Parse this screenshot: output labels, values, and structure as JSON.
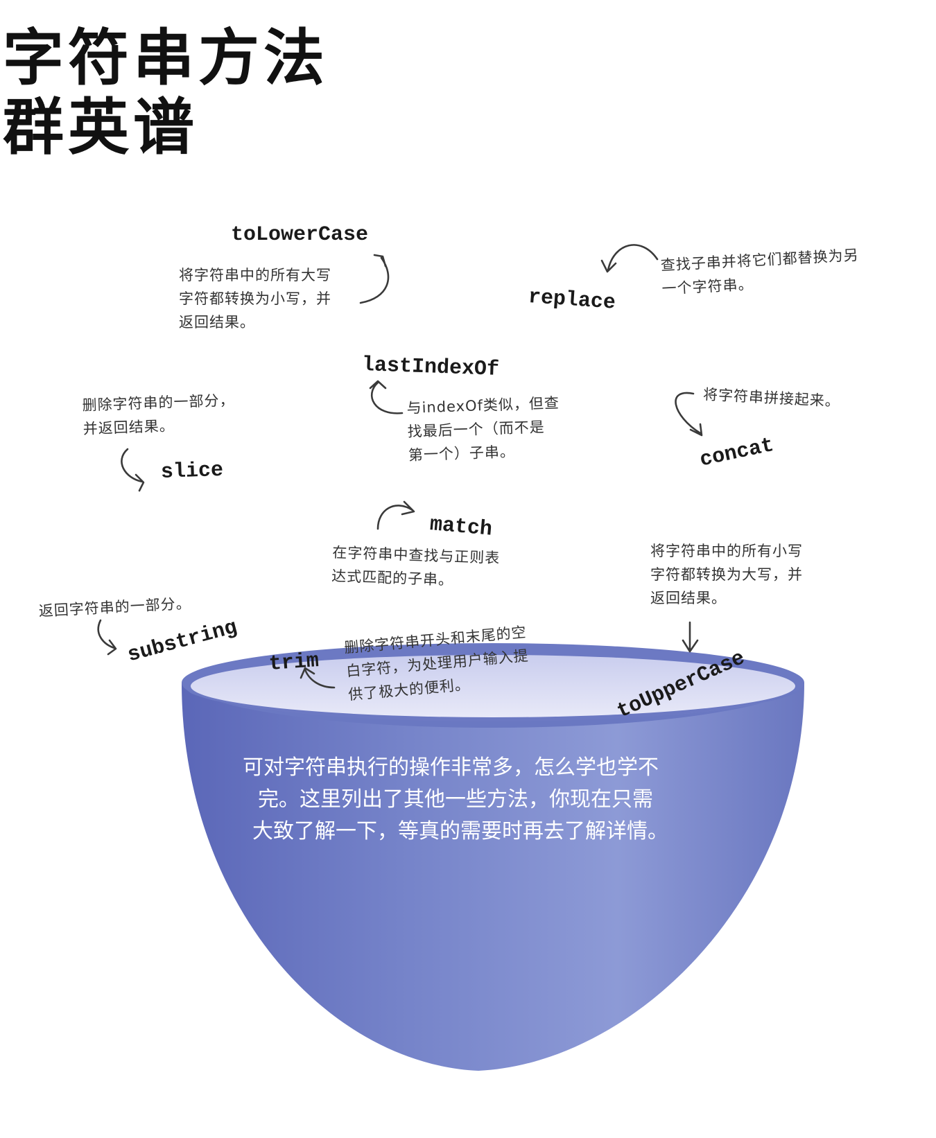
{
  "title": {
    "line1": "字符串方法",
    "line2": "群英谱"
  },
  "methods": {
    "toLowerCase": {
      "name": "toLowerCase",
      "lines": [
        "将字符串中的所有大写",
        "字符都转换为小写，并",
        "返回结果。"
      ]
    },
    "replace": {
      "name": "replace",
      "lines": [
        "查找子串并将它们都替换为另",
        "一个字符串。"
      ]
    },
    "lastIndexOf": {
      "name": "lastIndexOf",
      "lines": [
        "与indexOf类似，但查",
        "找最后一个（而不是",
        "第一个）子串。"
      ]
    },
    "slice": {
      "name": "slice",
      "lines": [
        "删除字符串的一部分，",
        "并返回结果。"
      ]
    },
    "concat": {
      "name": "concat",
      "lines": [
        "将字符串拼接起来。"
      ]
    },
    "match": {
      "name": "match",
      "lines": [
        "在字符串中查找与正则表",
        "达式匹配的子串。"
      ]
    },
    "toUpperCase": {
      "name": "toUpperCase",
      "lines": [
        "将字符串中的所有小写",
        "字符都转换为大写，并",
        "返回结果。"
      ]
    },
    "substring": {
      "name": "substring",
      "lines": [
        "返回字符串的一部分。"
      ]
    },
    "trim": {
      "name": "trim",
      "lines": [
        "删除字符串开头和末尾的空",
        "白字符，为处理用户输入提",
        "供了极大的便利。"
      ]
    }
  },
  "bowl_text": [
    "可对字符串执行的操作非常多，怎么学也学不",
    "完。这里列出了其他一些方法，你现在只需",
    "大致了解一下，等真的需要时再去了解详情。"
  ],
  "colors": {
    "bowl_outer": "#6f7ec6",
    "bowl_inner": "#d9dcf3",
    "ink": "#222222"
  }
}
